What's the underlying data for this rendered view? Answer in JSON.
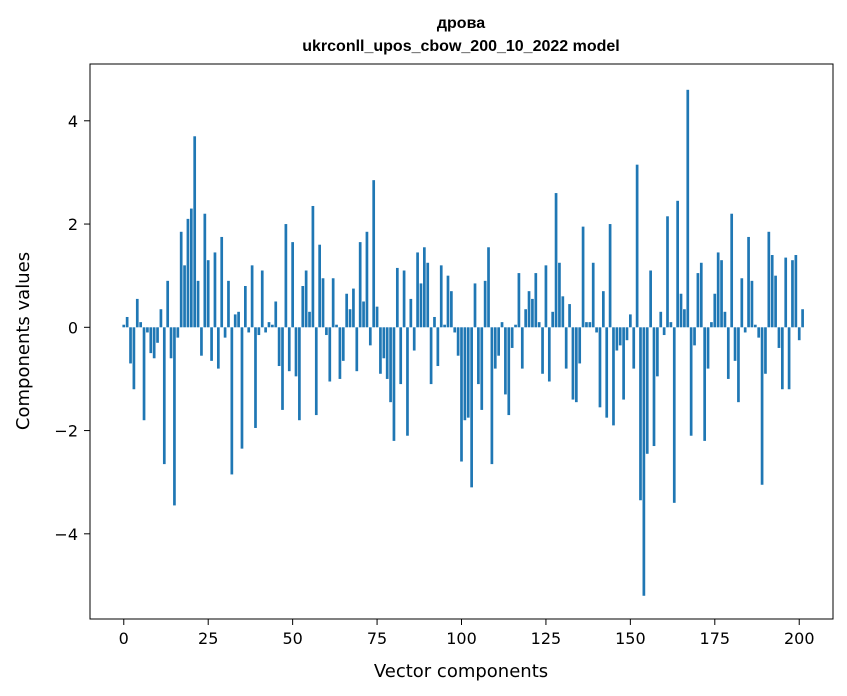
{
  "chart_data": {
    "type": "bar",
    "title": "дрова",
    "subtitle": "ukrconll_upos_cbow_200_10_2022 model",
    "xlabel": "Vector components",
    "ylabel": "Components values",
    "xlim": [
      -10,
      210
    ],
    "ylim": [
      -5.65,
      5.1
    ],
    "xticks": [
      0,
      25,
      50,
      75,
      100,
      125,
      150,
      175,
      200
    ],
    "yticks": [
      -4,
      -2,
      0,
      2,
      4
    ],
    "grid": false,
    "bar_color": "#1f77b4",
    "x_start": 0,
    "values": [
      0.05,
      0.2,
      -0.7,
      -1.2,
      0.55,
      0.1,
      -1.8,
      -0.1,
      -0.5,
      -0.6,
      -0.3,
      0.35,
      -2.65,
      0.9,
      -0.6,
      -3.45,
      -0.2,
      1.85,
      1.2,
      2.1,
      2.3,
      3.7,
      0.9,
      -0.55,
      2.2,
      1.3,
      -0.65,
      1.45,
      -0.8,
      1.75,
      -0.2,
      0.9,
      -2.85,
      0.25,
      0.3,
      -2.35,
      0.8,
      -0.1,
      1.2,
      -1.95,
      -0.15,
      1.1,
      -0.1,
      0.1,
      0.05,
      0.5,
      -0.75,
      -1.6,
      2.0,
      -0.85,
      1.65,
      -0.95,
      -1.8,
      0.8,
      1.1,
      0.3,
      2.35,
      -1.7,
      1.6,
      0.95,
      -0.15,
      -1.05,
      0.95,
      0.05,
      -1.0,
      -0.65,
      0.65,
      0.35,
      0.75,
      -0.85,
      1.65,
      0.5,
      1.85,
      -0.35,
      2.85,
      0.4,
      -0.9,
      -0.6,
      -1.0,
      -1.45,
      -2.2,
      1.15,
      -1.1,
      1.1,
      -2.1,
      0.55,
      -0.45,
      1.45,
      0.85,
      1.55,
      1.25,
      -1.1,
      0.2,
      -0.75,
      1.2,
      0.05,
      1.0,
      0.7,
      -0.1,
      -0.55,
      -2.6,
      -1.8,
      -1.75,
      -3.1,
      0.85,
      -1.1,
      -1.6,
      0.9,
      1.55,
      -2.65,
      -0.8,
      -0.55,
      0.1,
      -1.3,
      -1.7,
      -0.4,
      0.05,
      1.05,
      -0.8,
      0.35,
      0.7,
      0.55,
      1.05,
      0.1,
      -0.9,
      1.2,
      -1.05,
      0.3,
      2.6,
      1.25,
      0.6,
      -0.8,
      0.45,
      -1.4,
      -1.45,
      -0.7,
      1.95,
      0.1,
      0.1,
      1.25,
      -0.1,
      -1.55,
      0.7,
      -1.75,
      2.0,
      -1.9,
      -0.45,
      -0.35,
      -1.4,
      -0.25,
      0.25,
      -0.8,
      3.15,
      -3.35,
      -5.2,
      -2.45,
      1.1,
      -2.3,
      -0.95,
      0.3,
      -0.15,
      2.15,
      0.1,
      -3.4,
      2.45,
      0.65,
      0.35,
      4.6,
      -2.1,
      -0.35,
      1.05,
      1.25,
      -2.2,
      -0.8,
      0.1,
      0.65,
      1.45,
      1.3,
      0.3,
      -1.0,
      2.2,
      -0.65,
      -1.45,
      0.95,
      -0.1,
      1.75,
      0.9,
      0.05,
      -0.2,
      -3.05,
      -0.9,
      1.85,
      1.4,
      1.0,
      -0.4,
      -1.2,
      1.35,
      -1.2,
      1.3,
      1.4,
      -0.25,
      0.35
    ]
  }
}
